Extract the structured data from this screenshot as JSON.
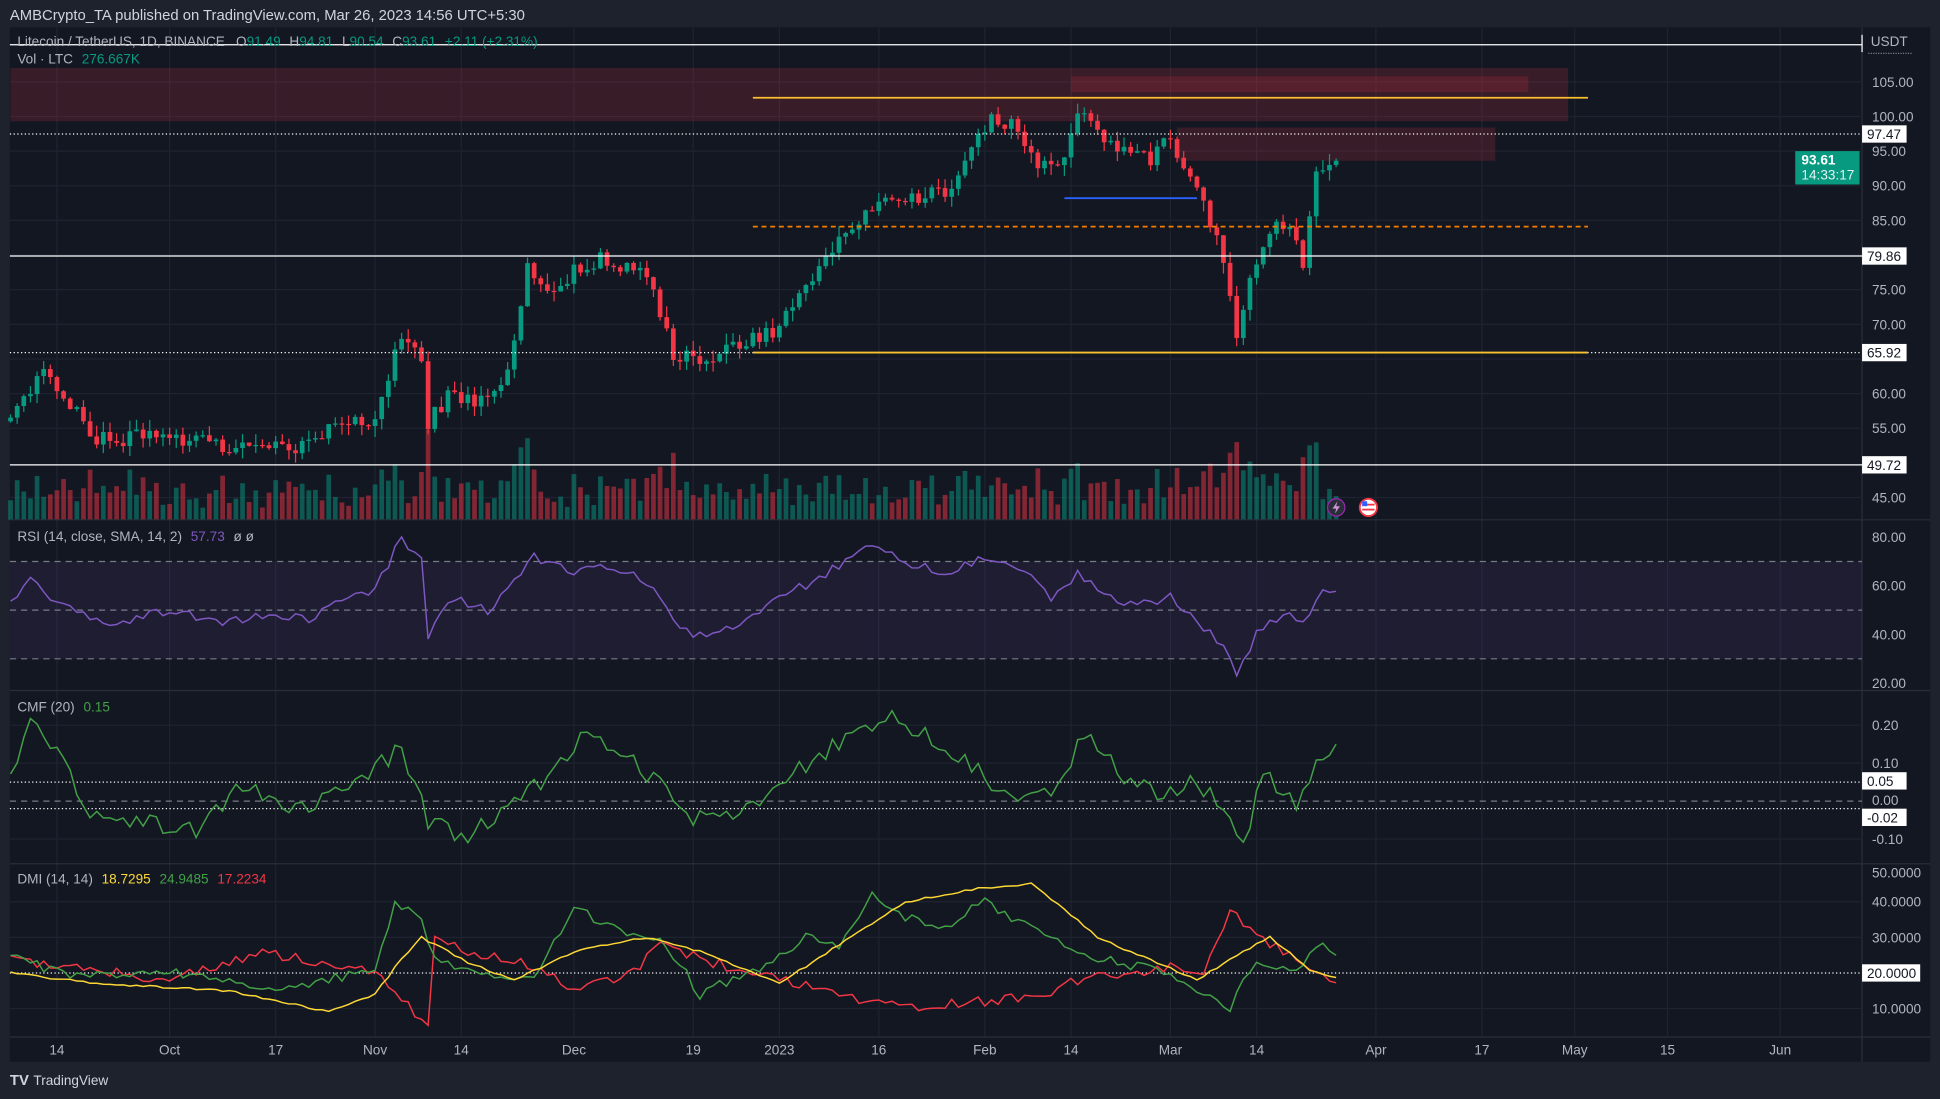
{
  "header": {
    "published": "AMBCrypto_TA published on TradingView.com, Mar 26, 2023 14:56 UTC+5:30"
  },
  "legend": {
    "symbol": "Litecoin / TetherUS, 1D, BINANCE",
    "o_label": "O",
    "o": "91.49",
    "h_label": "H",
    "h": "94.81",
    "l_label": "L",
    "l": "90.54",
    "c_label": "C",
    "c": "93.61",
    "change": "+2.11 (+2.31%)",
    "vol_label": "Vol · LTC",
    "vol": "276.667K"
  },
  "price_axis": {
    "currency": "USDT",
    "ticks": [
      "105.00",
      "100.00",
      "95.00",
      "90.00",
      "85.00",
      "75.00",
      "70.00",
      "60.00",
      "55.00",
      "45.00"
    ],
    "tick_values": [
      105,
      100,
      95,
      90,
      85,
      75,
      70,
      60,
      55,
      45
    ],
    "marked_levels": [
      {
        "label": "97.47",
        "value": 97.47,
        "style": "dotted"
      },
      {
        "label": "79.86",
        "value": 79.86,
        "style": "solid"
      },
      {
        "label": "65.92",
        "value": 65.92,
        "style": "dotted"
      },
      {
        "label": "49.72",
        "value": 49.72,
        "style": "solid"
      }
    ],
    "last_price": "93.61",
    "countdown": "14:33:17"
  },
  "rsi": {
    "title": "RSI (14, close, SMA, 14, 2)",
    "value": "57.73",
    "extra": "ø  ø",
    "ticks": [
      "80.00",
      "60.00",
      "40.00",
      "20.00"
    ],
    "tick_values": [
      80,
      60,
      40,
      20
    ]
  },
  "cmf": {
    "title": "CMF (20)",
    "value": "0.15",
    "ticks": [
      "0.20",
      "0.10",
      "0.00",
      "-0.10"
    ],
    "tick_values": [
      0.2,
      0.1,
      0,
      -0.1
    ],
    "marked": [
      {
        "label": "0.05",
        "value": 0.05
      },
      {
        "label": "-0.02",
        "value": -0.02
      }
    ]
  },
  "dmi": {
    "title": "DMI (14, 14)",
    "adx": "18.7295",
    "plus_di": "24.9485",
    "minus_di": "17.2234",
    "ticks": [
      "50.0000",
      "40.0000",
      "30.0000",
      "10.0000"
    ],
    "tick_values": [
      50,
      40,
      30,
      10
    ],
    "marked": [
      {
        "label": "20.0000",
        "value": 20
      }
    ]
  },
  "time_axis": {
    "labels": [
      {
        "t": "14",
        "d": "2022-09-14"
      },
      {
        "t": "Oct",
        "d": "2022-10-01"
      },
      {
        "t": "17",
        "d": "2022-10-17"
      },
      {
        "t": "Nov",
        "d": "2022-11-01"
      },
      {
        "t": "14",
        "d": "2022-11-14"
      },
      {
        "t": "Dec",
        "d": "2022-12-01"
      },
      {
        "t": "19",
        "d": "2022-12-19"
      },
      {
        "t": "2023",
        "d": "2023-01-01"
      },
      {
        "t": "16",
        "d": "2023-01-16"
      },
      {
        "t": "Feb",
        "d": "2023-02-01"
      },
      {
        "t": "14",
        "d": "2023-02-14"
      },
      {
        "t": "Mar",
        "d": "2023-03-01"
      },
      {
        "t": "14",
        "d": "2023-03-14"
      },
      {
        "t": "Apr",
        "d": "2023-04-01"
      },
      {
        "t": "17",
        "d": "2023-04-17"
      },
      {
        "t": "May",
        "d": "2023-05-01"
      },
      {
        "t": "15",
        "d": "2023-05-15"
      },
      {
        "t": "Jun",
        "d": "2023-06-01"
      }
    ]
  },
  "footer": {
    "brand": "TradingView"
  },
  "colors": {
    "up": "#089981",
    "down": "#f23645",
    "rsi": "#7e57c2",
    "cmf": "#43a047",
    "adx": "#fdd835",
    "plus_di": "#43a047",
    "minus_di": "#f23645",
    "support": "#fbc02d",
    "bg": "#131722"
  },
  "chart_data": {
    "type": "candlestick",
    "title": "Litecoin / TetherUS, 1D, BINANCE",
    "ylim": [
      43,
      109
    ],
    "close_keypoints": [
      [
        "2022-09-07",
        56
      ],
      [
        "2022-09-12",
        63
      ],
      [
        "2022-09-14",
        60.5
      ],
      [
        "2022-09-20",
        53.4
      ],
      [
        "2022-10-01",
        54
      ],
      [
        "2022-10-10",
        52.5
      ],
      [
        "2022-10-20",
        52.5
      ],
      [
        "2022-10-27",
        56
      ],
      [
        "2022-11-01",
        56
      ],
      [
        "2022-11-05",
        68.5
      ],
      [
        "2022-11-08",
        65
      ],
      [
        "2022-11-09",
        56
      ],
      [
        "2022-11-12",
        59.6
      ],
      [
        "2022-11-17",
        58.7
      ],
      [
        "2022-11-21",
        63
      ],
      [
        "2022-11-24",
        78.4
      ],
      [
        "2022-11-27",
        74.8
      ],
      [
        "2022-12-01",
        77.5
      ],
      [
        "2022-12-05",
        79.3
      ],
      [
        "2022-12-12",
        76.6
      ],
      [
        "2022-12-16",
        65.9
      ],
      [
        "2022-12-20",
        65
      ],
      [
        "2022-12-26",
        67
      ],
      [
        "2023-01-01",
        69.5
      ],
      [
        "2023-01-05",
        74.8
      ],
      [
        "2023-01-10",
        82
      ],
      [
        "2023-01-15",
        87.3
      ],
      [
        "2023-01-20",
        88.2
      ],
      [
        "2023-01-26",
        89
      ],
      [
        "2023-01-30",
        95.4
      ],
      [
        "2023-02-02",
        99.8
      ],
      [
        "2023-02-06",
        98
      ],
      [
        "2023-02-09",
        91.8
      ],
      [
        "2023-02-13",
        94.5
      ],
      [
        "2023-02-15",
        101.6
      ],
      [
        "2023-02-18",
        98
      ],
      [
        "2023-02-22",
        94.5
      ],
      [
        "2023-02-26",
        93.5
      ],
      [
        "2023-03-01",
        97
      ],
      [
        "2023-03-03",
        91.8
      ],
      [
        "2023-03-06",
        88.2
      ],
      [
        "2023-03-09",
        78.4
      ],
      [
        "2023-03-11",
        68.5
      ],
      [
        "2023-03-13",
        76.6
      ],
      [
        "2023-03-16",
        83.7
      ],
      [
        "2023-03-19",
        84.6
      ],
      [
        "2023-03-21",
        79.3
      ],
      [
        "2023-03-23",
        92.7
      ],
      [
        "2023-03-26",
        93.61
      ]
    ],
    "annotations": {
      "zones": [
        {
          "from": "2022-09-07",
          "to": "2023-04-30",
          "top": 107,
          "bottom": 99.3
        },
        {
          "from": "2023-02-14",
          "to": "2023-04-24",
          "top": 105.8,
          "bottom": 103.5
        },
        {
          "from": "2023-03-02",
          "to": "2023-04-19",
          "top": 98.4,
          "bottom": 93.6
        }
      ],
      "segments": [
        {
          "from": "2022-12-28",
          "to": "2023-05-03",
          "price": 102.7,
          "color": "#fbc02d",
          "style": "solid"
        },
        {
          "from": "2022-12-28",
          "to": "2023-05-03",
          "price": 65.92,
          "color": "#fbc02d",
          "style": "solid"
        },
        {
          "from": "2022-12-28",
          "to": "2023-05-03",
          "price": 84.1,
          "color": "#f57c00",
          "style": "dashed"
        },
        {
          "from": "2023-02-13",
          "to": "2023-03-05",
          "price": 88.2,
          "color": "#2962ff",
          "style": "solid"
        }
      ]
    },
    "rsi_keypoints": [
      [
        "2022-09-07",
        52
      ],
      [
        "2022-09-10",
        62
      ],
      [
        "2022-09-16",
        50
      ],
      [
        "2022-09-22",
        44
      ],
      [
        "2022-10-01",
        50
      ],
      [
        "2022-10-08",
        45
      ],
      [
        "2022-10-15",
        48
      ],
      [
        "2022-10-22",
        46
      ],
      [
        "2022-10-28",
        55
      ],
      [
        "2022-11-01",
        58
      ],
      [
        "2022-11-05",
        80
      ],
      [
        "2022-11-08",
        70
      ],
      [
        "2022-11-09",
        40
      ],
      [
        "2022-11-13",
        55
      ],
      [
        "2022-11-18",
        50
      ],
      [
        "2022-11-22",
        62
      ],
      [
        "2022-11-25",
        72
      ],
      [
        "2022-12-01",
        66
      ],
      [
        "2022-12-06",
        67
      ],
      [
        "2022-12-12",
        62
      ],
      [
        "2022-12-17",
        42
      ],
      [
        "2022-12-21",
        38
      ],
      [
        "2022-12-27",
        45
      ],
      [
        "2023-01-01",
        55
      ],
      [
        "2023-01-06",
        62
      ],
      [
        "2023-01-12",
        72
      ],
      [
        "2023-01-15",
        78
      ],
      [
        "2023-01-20",
        70
      ],
      [
        "2023-01-26",
        65
      ],
      [
        "2023-02-02",
        72
      ],
      [
        "2023-02-06",
        68
      ],
      [
        "2023-02-11",
        55
      ],
      [
        "2023-02-15",
        65
      ],
      [
        "2023-02-20",
        55
      ],
      [
        "2023-02-26",
        52
      ],
      [
        "2023-03-01",
        55
      ],
      [
        "2023-03-05",
        45
      ],
      [
        "2023-03-09",
        35
      ],
      [
        "2023-03-11",
        23
      ],
      [
        "2023-03-14",
        40
      ],
      [
        "2023-03-18",
        48
      ],
      [
        "2023-03-21",
        45
      ],
      [
        "2023-03-24",
        60
      ],
      [
        "2023-03-26",
        57.73
      ]
    ],
    "cmf_keypoints": [
      [
        "2022-09-07",
        0.05
      ],
      [
        "2022-09-10",
        0.2
      ],
      [
        "2022-09-14",
        0.15
      ],
      [
        "2022-09-18",
        -0.03
      ],
      [
        "2022-09-25",
        -0.05
      ],
      [
        "2022-10-05",
        -0.08
      ],
      [
        "2022-10-12",
        0.05
      ],
      [
        "2022-10-20",
        -0.03
      ],
      [
        "2022-10-28",
        0.03
      ],
      [
        "2022-11-05",
        0.14
      ],
      [
        "2022-11-09",
        -0.05
      ],
      [
        "2022-11-14",
        -0.1
      ],
      [
        "2022-11-22",
        0
      ],
      [
        "2022-11-28",
        0.08
      ],
      [
        "2022-12-02",
        0.17
      ],
      [
        "2022-12-08",
        0.12
      ],
      [
        "2022-12-14",
        0.05
      ],
      [
        "2022-12-18",
        -0.05
      ],
      [
        "2022-12-24",
        -0.05
      ],
      [
        "2022-12-30",
        0
      ],
      [
        "2023-01-05",
        0.1
      ],
      [
        "2023-01-12",
        0.18
      ],
      [
        "2023-01-18",
        0.23
      ],
      [
        "2023-01-25",
        0.15
      ],
      [
        "2023-02-02",
        0.05
      ],
      [
        "2023-02-08",
        0
      ],
      [
        "2023-02-12",
        0.04
      ],
      [
        "2023-02-16",
        0.18
      ],
      [
        "2023-02-22",
        0.07
      ],
      [
        "2023-02-28",
        0
      ],
      [
        "2023-03-04",
        0.05
      ],
      [
        "2023-03-08",
        0
      ],
      [
        "2023-03-12",
        -0.12
      ],
      [
        "2023-03-15",
        0.07
      ],
      [
        "2023-03-20",
        -0.02
      ],
      [
        "2023-03-23",
        0.12
      ],
      [
        "2023-03-26",
        0.15
      ]
    ],
    "adx_keypoints": [
      [
        "2022-09-07",
        20
      ],
      [
        "2022-09-20",
        17
      ],
      [
        "2022-10-10",
        15
      ],
      [
        "2022-10-25",
        9
      ],
      [
        "2022-11-01",
        14
      ],
      [
        "2022-11-05",
        24
      ],
      [
        "2022-11-08",
        30
      ],
      [
        "2022-11-15",
        23
      ],
      [
        "2022-11-22",
        18
      ],
      [
        "2022-12-01",
        26
      ],
      [
        "2022-12-12",
        30
      ],
      [
        "2022-12-20",
        26
      ],
      [
        "2023-01-01",
        17
      ],
      [
        "2023-01-10",
        28
      ],
      [
        "2023-01-20",
        40
      ],
      [
        "2023-02-01",
        44
      ],
      [
        "2023-02-08",
        45
      ],
      [
        "2023-02-13",
        38
      ],
      [
        "2023-02-18",
        30
      ],
      [
        "2023-02-28",
        22
      ],
      [
        "2023-03-05",
        18
      ],
      [
        "2023-03-12",
        26
      ],
      [
        "2023-03-16",
        30
      ],
      [
        "2023-03-22",
        21
      ],
      [
        "2023-03-26",
        18.73
      ]
    ],
    "plus_di_keypoints": [
      [
        "2022-09-07",
        24
      ],
      [
        "2022-09-15",
        20
      ],
      [
        "2022-10-01",
        20
      ],
      [
        "2022-10-15",
        16
      ],
      [
        "2022-10-25",
        18
      ],
      [
        "2022-11-01",
        22
      ],
      [
        "2022-11-04",
        40
      ],
      [
        "2022-11-08",
        35
      ],
      [
        "2022-11-10",
        24
      ],
      [
        "2022-11-15",
        20
      ],
      [
        "2022-11-25",
        18
      ],
      [
        "2022-12-01",
        38
      ],
      [
        "2022-12-10",
        30
      ],
      [
        "2022-12-15",
        28
      ],
      [
        "2022-12-20",
        14
      ],
      [
        "2022-12-30",
        22
      ],
      [
        "2023-01-05",
        30
      ],
      [
        "2023-01-10",
        28
      ],
      [
        "2023-01-15",
        42
      ],
      [
        "2023-01-20",
        36
      ],
      [
        "2023-01-25",
        32
      ],
      [
        "2023-02-01",
        40
      ],
      [
        "2023-02-06",
        34
      ],
      [
        "2023-02-13",
        28
      ],
      [
        "2023-02-18",
        24
      ],
      [
        "2023-02-28",
        20
      ],
      [
        "2023-03-05",
        16
      ],
      [
        "2023-03-10",
        10
      ],
      [
        "2023-03-14",
        24
      ],
      [
        "2023-03-20",
        20
      ],
      [
        "2023-03-23",
        28
      ],
      [
        "2023-03-26",
        24.95
      ]
    ],
    "minus_di_keypoints": [
      [
        "2022-09-07",
        24
      ],
      [
        "2022-09-15",
        22
      ],
      [
        "2022-10-01",
        18
      ],
      [
        "2022-10-15",
        26
      ],
      [
        "2022-10-25",
        22
      ],
      [
        "2022-11-01",
        20
      ],
      [
        "2022-11-05",
        12
      ],
      [
        "2022-11-09",
        6
      ],
      [
        "2022-11-10",
        30
      ],
      [
        "2022-11-15",
        26
      ],
      [
        "2022-11-22",
        24
      ],
      [
        "2022-12-01",
        16
      ],
      [
        "2022-12-10",
        20
      ],
      [
        "2022-12-14",
        28
      ],
      [
        "2022-12-20",
        24
      ],
      [
        "2023-01-01",
        18
      ],
      [
        "2023-01-10",
        14
      ],
      [
        "2023-01-20",
        10
      ],
      [
        "2023-02-01",
        12
      ],
      [
        "2023-02-10",
        14
      ],
      [
        "2023-02-15",
        18
      ],
      [
        "2023-02-25",
        20
      ],
      [
        "2023-03-01",
        22
      ],
      [
        "2023-03-06",
        20
      ],
      [
        "2023-03-10",
        38
      ],
      [
        "2023-03-14",
        30
      ],
      [
        "2023-03-18",
        26
      ],
      [
        "2023-03-22",
        20
      ],
      [
        "2023-03-26",
        17.22
      ]
    ]
  }
}
